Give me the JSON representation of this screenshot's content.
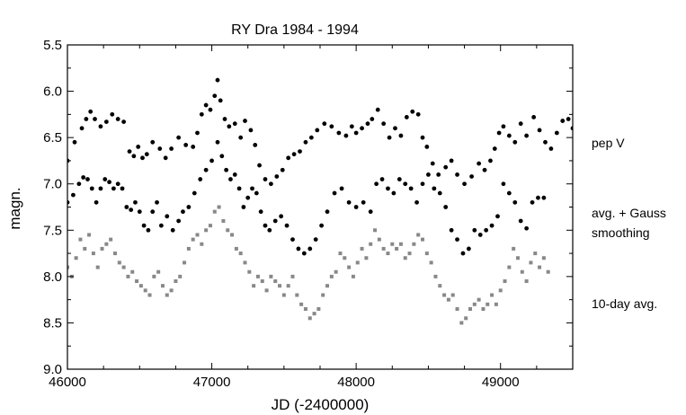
{
  "chart_data": {
    "type": "scatter",
    "title": "RY Dra  1984 - 1994",
    "xlabel": "JD (-2400000)",
    "ylabel": "magn.",
    "xlim": [
      46000,
      49500
    ],
    "ylim": [
      5.5,
      9.0
    ],
    "y_inverted": true,
    "grid": false,
    "x_ticks": [
      46000,
      47000,
      48000,
      49000
    ],
    "x_tick_labels": [
      "46000",
      "47000",
      "48000",
      "49000"
    ],
    "y_ticks": [
      5.5,
      6.0,
      6.5,
      7.0,
      7.5,
      8.0,
      8.5,
      9.0
    ],
    "y_tick_labels": [
      "5.5",
      "6.0",
      "6.5",
      "7.0",
      "7.5",
      "8.0",
      "8.5",
      "9.0"
    ],
    "series": [
      {
        "label": "pep V",
        "color": "#000000",
        "marker": "circle",
        "x": [
          46000,
          46050,
          46100,
          46130,
          46160,
          46190,
          46230,
          46270,
          46310,
          46350,
          46390,
          46430,
          46460,
          46490,
          46520,
          46550,
          46590,
          46640,
          46680,
          46720,
          46770,
          46820,
          46870,
          46900,
          46930,
          46960,
          46990,
          47020,
          47040,
          47060,
          47090,
          47120,
          47160,
          47200,
          47230,
          47270,
          47300,
          47330,
          47370,
          47410,
          47450,
          47490,
          47530,
          47570,
          47610,
          47650,
          47690,
          47730,
          47780,
          47830,
          47880,
          47930,
          47970,
          48000,
          48040,
          48080,
          48110,
          48150,
          48190,
          48230,
          48270,
          48310,
          48350,
          48390,
          48430,
          48460,
          48490,
          48530,
          48570,
          48620,
          48660,
          48700,
          48750,
          48800,
          48850,
          48890,
          48930,
          48960,
          48990,
          49020,
          49060,
          49100,
          49140,
          49180,
          49230,
          49270,
          49310,
          49350,
          49390,
          49430,
          49470,
          49500
        ],
        "y": [
          6.75,
          6.55,
          6.4,
          6.3,
          6.22,
          6.3,
          6.38,
          6.33,
          6.25,
          6.3,
          6.33,
          6.65,
          6.7,
          6.6,
          6.72,
          6.68,
          6.55,
          6.62,
          6.72,
          6.62,
          6.5,
          6.58,
          6.6,
          6.45,
          6.25,
          6.15,
          6.2,
          6.05,
          5.88,
          6.1,
          6.3,
          6.38,
          6.35,
          6.5,
          6.32,
          6.42,
          6.58,
          6.8,
          6.95,
          7.0,
          6.92,
          6.85,
          6.72,
          6.68,
          6.65,
          6.55,
          6.5,
          6.42,
          6.35,
          6.38,
          6.45,
          6.48,
          6.38,
          6.45,
          6.4,
          6.35,
          6.3,
          6.2,
          6.35,
          6.5,
          6.4,
          6.48,
          6.28,
          6.22,
          6.25,
          6.5,
          6.6,
          6.78,
          6.9,
          6.82,
          6.75,
          6.9,
          7.0,
          6.92,
          6.78,
          6.85,
          6.75,
          6.62,
          6.45,
          6.38,
          6.48,
          6.55,
          6.35,
          6.48,
          6.28,
          6.42,
          6.55,
          6.62,
          6.45,
          6.32,
          6.3,
          6.4
        ]
      },
      {
        "label": "avg. + Gauss\nsmoothing",
        "color": "#000000",
        "marker": "circle",
        "x": [
          46000,
          46040,
          46080,
          46110,
          46140,
          46170,
          46200,
          46230,
          46260,
          46290,
          46320,
          46350,
          46380,
          46410,
          46440,
          46470,
          46500,
          46530,
          46560,
          46590,
          46620,
          46650,
          46690,
          46730,
          46770,
          46800,
          46840,
          46880,
          46920,
          46960,
          47000,
          47040,
          47070,
          47100,
          47130,
          47160,
          47190,
          47220,
          47250,
          47280,
          47310,
          47340,
          47370,
          47400,
          47440,
          47480,
          47520,
          47560,
          47600,
          47640,
          47680,
          47720,
          47760,
          47800,
          47850,
          47900,
          47950,
          48000,
          48050,
          48100,
          48140,
          48180,
          48220,
          48260,
          48300,
          48340,
          48380,
          48420,
          48460,
          48500,
          48540,
          48580,
          48620,
          48660,
          48700,
          48740,
          48780,
          48820,
          48860,
          48900,
          48940,
          48980,
          49020,
          49060,
          49100,
          49140,
          49180,
          49220,
          49260,
          49300
        ],
        "y": [
          7.2,
          7.12,
          7.0,
          6.93,
          6.95,
          7.05,
          7.2,
          7.05,
          6.95,
          6.98,
          7.05,
          7.0,
          7.05,
          7.25,
          7.28,
          7.2,
          7.3,
          7.45,
          7.5,
          7.3,
          7.2,
          7.45,
          7.35,
          7.5,
          7.4,
          7.3,
          7.25,
          7.1,
          6.95,
          6.85,
          6.75,
          6.55,
          6.7,
          6.85,
          6.95,
          6.9,
          7.05,
          7.25,
          7.15,
          7.05,
          7.1,
          7.3,
          7.45,
          7.5,
          7.4,
          7.35,
          7.45,
          7.6,
          7.7,
          7.75,
          7.7,
          7.6,
          7.45,
          7.3,
          7.1,
          7.05,
          7.2,
          7.25,
          7.2,
          7.3,
          7.0,
          6.95,
          7.05,
          7.1,
          6.95,
          7.0,
          7.05,
          7.2,
          7.0,
          6.9,
          7.05,
          7.1,
          7.25,
          7.5,
          7.6,
          7.75,
          7.7,
          7.5,
          7.55,
          7.5,
          7.45,
          7.35,
          7.0,
          7.1,
          7.2,
          7.4,
          7.48,
          7.2,
          7.15,
          7.15
        ]
      },
      {
        "label": "10-day avg.",
        "color": "#888888",
        "marker": "square",
        "x": [
          46000,
          46030,
          46060,
          46090,
          46120,
          46150,
          46180,
          46210,
          46240,
          46270,
          46300,
          46330,
          46360,
          46390,
          46420,
          46450,
          46480,
          46510,
          46540,
          46570,
          46600,
          46630,
          46660,
          46690,
          46720,
          46750,
          46780,
          46810,
          46840,
          46870,
          46900,
          46930,
          46960,
          46990,
          47020,
          47050,
          47080,
          47110,
          47140,
          47170,
          47200,
          47230,
          47260,
          47290,
          47320,
          47350,
          47380,
          47410,
          47440,
          47470,
          47500,
          47530,
          47560,
          47590,
          47620,
          47650,
          47680,
          47710,
          47740,
          47770,
          47800,
          47830,
          47860,
          47890,
          47920,
          47950,
          47980,
          48010,
          48040,
          48070,
          48100,
          48130,
          48160,
          48190,
          48220,
          48250,
          48280,
          48310,
          48340,
          48370,
          48400,
          48430,
          48460,
          48490,
          48520,
          48550,
          48580,
          48610,
          48640,
          48670,
          48700,
          48730,
          48760,
          48790,
          48820,
          48850,
          48880,
          48910,
          48940,
          48970,
          49000,
          49030,
          49060,
          49090,
          49120,
          49150,
          49180,
          49210,
          49240,
          49270,
          49300,
          49330
        ],
        "y": [
          7.9,
          8.0,
          7.8,
          7.6,
          7.7,
          7.55,
          7.75,
          7.9,
          7.7,
          7.65,
          7.6,
          7.75,
          7.85,
          7.9,
          8.0,
          7.95,
          8.05,
          8.1,
          8.15,
          8.2,
          8.0,
          7.95,
          8.1,
          8.2,
          8.15,
          8.05,
          8.0,
          7.85,
          7.7,
          7.6,
          7.55,
          7.65,
          7.5,
          7.45,
          7.3,
          7.25,
          7.4,
          7.5,
          7.55,
          7.7,
          7.75,
          7.85,
          7.95,
          8.1,
          8.0,
          8.05,
          8.15,
          8.0,
          8.05,
          8.1,
          8.2,
          8.1,
          8.0,
          8.2,
          8.3,
          8.35,
          8.45,
          8.4,
          8.35,
          8.2,
          8.1,
          8.0,
          7.95,
          7.75,
          7.8,
          7.9,
          8.0,
          7.85,
          7.7,
          7.8,
          7.65,
          7.5,
          7.6,
          7.7,
          7.75,
          7.65,
          7.7,
          7.65,
          7.8,
          7.75,
          7.65,
          7.55,
          7.6,
          7.75,
          7.85,
          8.0,
          8.1,
          8.2,
          8.25,
          8.2,
          8.35,
          8.5,
          8.45,
          8.35,
          8.3,
          8.25,
          8.35,
          8.3,
          8.2,
          8.3,
          8.15,
          8.05,
          7.9,
          7.7,
          7.8,
          7.95,
          8.05,
          7.85,
          7.75,
          7.9,
          7.8,
          7.95
        ]
      }
    ]
  }
}
